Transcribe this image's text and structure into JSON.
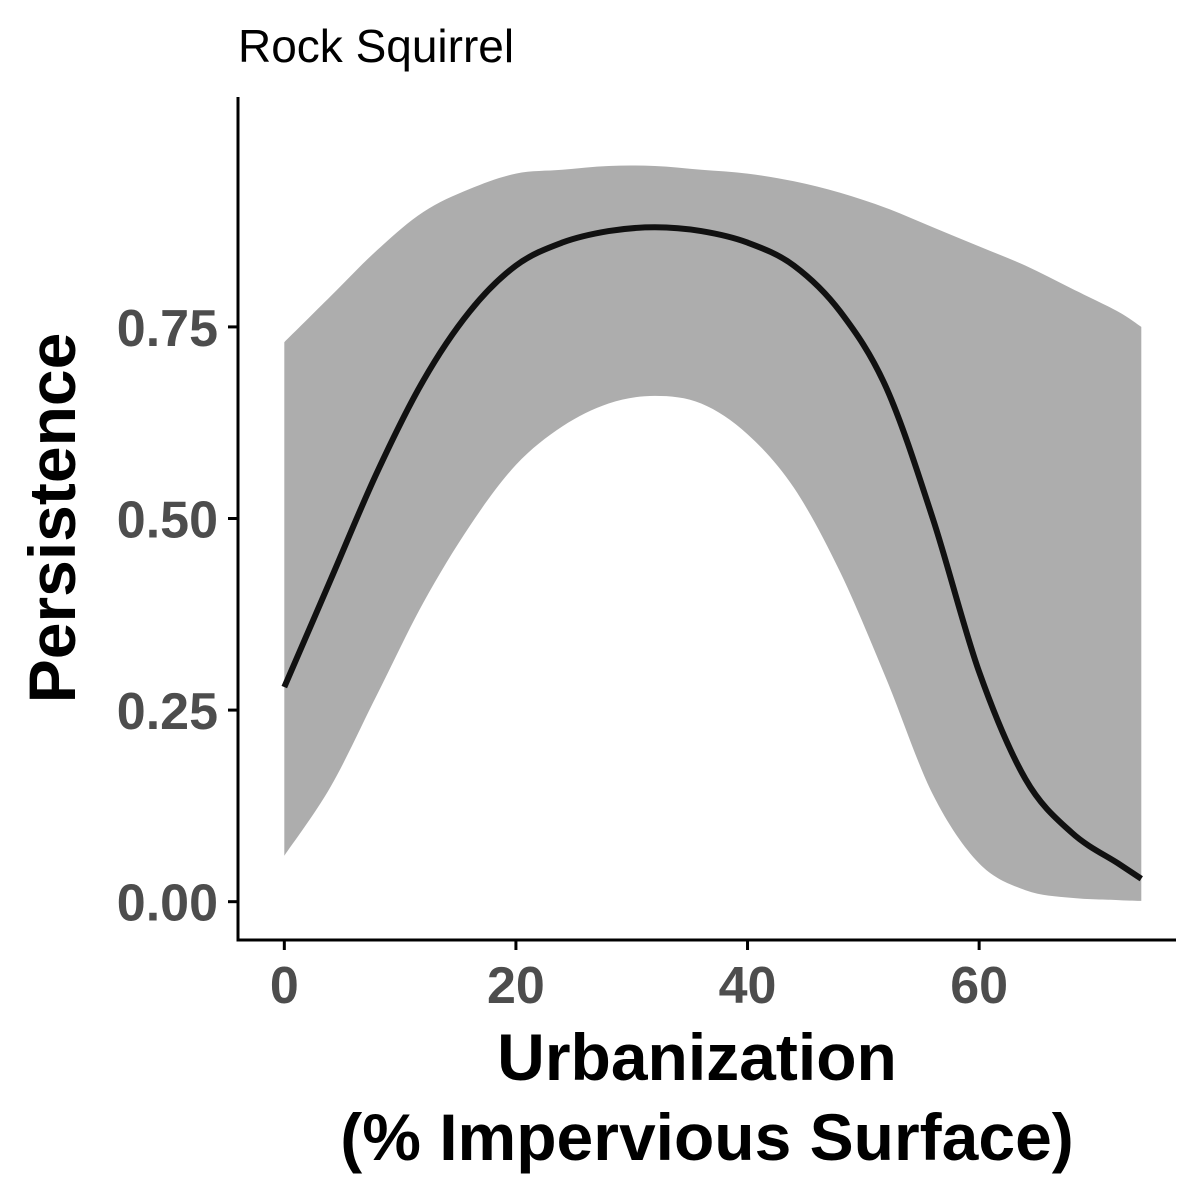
{
  "chart_data": {
    "type": "line",
    "title": "Rock Squirrel",
    "xlabel_lines": [
      "Urbanization",
      "(% Impervious Surface)"
    ],
    "ylabel": "Persistence",
    "xlim": [
      -4,
      77
    ],
    "ylim": [
      -0.05,
      1.05
    ],
    "xticks": [
      0,
      20,
      40,
      60
    ],
    "xtick_labels": [
      "0",
      "20",
      "40",
      "60"
    ],
    "yticks": [
      0,
      0.25,
      0.5,
      0.75
    ],
    "ytick_labels": [
      "0.00",
      "0.25",
      "0.50",
      "0.75"
    ],
    "grid": false,
    "legend": "none",
    "colors": {
      "line": "#111111",
      "ribbon": "#adadad",
      "axis": "#000000",
      "tick_text": "#4d4d4d"
    },
    "series": [
      {
        "x": [
          0,
          4,
          8,
          12,
          16,
          20,
          24,
          28,
          32,
          36,
          40,
          44,
          48,
          52,
          56,
          60,
          64,
          68,
          72,
          74
        ],
        "y": [
          0.28,
          0.42,
          0.56,
          0.68,
          0.77,
          0.83,
          0.86,
          0.875,
          0.88,
          0.875,
          0.86,
          0.83,
          0.77,
          0.67,
          0.5,
          0.3,
          0.16,
          0.09,
          0.05,
          0.03
        ],
        "lower": [
          0.06,
          0.15,
          0.27,
          0.39,
          0.49,
          0.57,
          0.62,
          0.65,
          0.66,
          0.65,
          0.61,
          0.54,
          0.43,
          0.29,
          0.14,
          0.05,
          0.015,
          0.005,
          0.002,
          0.001
        ],
        "upper": [
          0.73,
          0.79,
          0.85,
          0.9,
          0.93,
          0.95,
          0.955,
          0.96,
          0.96,
          0.955,
          0.95,
          0.94,
          0.925,
          0.905,
          0.88,
          0.855,
          0.83,
          0.8,
          0.77,
          0.75
        ]
      }
    ]
  }
}
